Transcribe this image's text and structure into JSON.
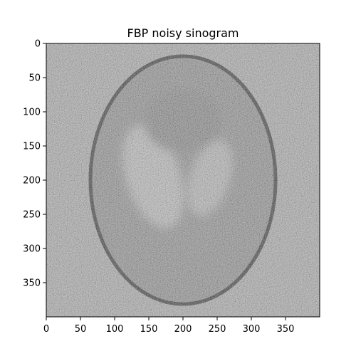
{
  "figure": {
    "title": "FBP noisy sinogram"
  },
  "image": {
    "description_kind": "reconstructed-phantom",
    "width_units": 400,
    "height_units": 400,
    "background_gray": "#a9a9a9",
    "ellipse_gray": "#8e8e8e",
    "rim_gray": "#3a3a3a",
    "lobe_gray": "#b8b8b8"
  },
  "axes": {
    "x": {
      "ticks": [
        0,
        50,
        100,
        150,
        200,
        250,
        300,
        350
      ],
      "range": [
        0,
        400
      ]
    },
    "y": {
      "ticks": [
        0,
        50,
        100,
        150,
        200,
        250,
        300,
        350
      ],
      "range": [
        0,
        400
      ]
    }
  }
}
